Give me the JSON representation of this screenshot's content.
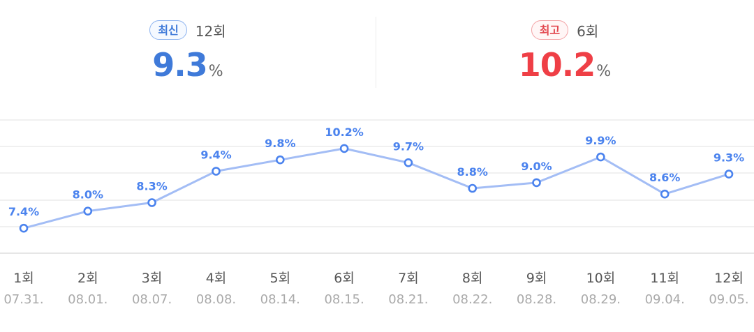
{
  "summary": {
    "latest": {
      "badge": "최신",
      "episode": "12회",
      "value": "9.3",
      "unit": "%"
    },
    "best": {
      "badge": "최고",
      "episode": "6회",
      "value": "10.2",
      "unit": "%"
    }
  },
  "colors": {
    "latest_accent": "#3f7ad9",
    "best_accent": "#ef3f46",
    "line": "#a3bdf5",
    "point": "#4b83ee"
  },
  "chart_data": {
    "type": "line",
    "categories": [
      "1회",
      "2회",
      "3회",
      "4회",
      "5회",
      "6회",
      "7회",
      "8회",
      "9회",
      "10회",
      "11회",
      "12회"
    ],
    "dates": [
      "07.31.",
      "08.01.",
      "08.07.",
      "08.08.",
      "08.14.",
      "08.15.",
      "08.21.",
      "08.22.",
      "08.28.",
      "08.29.",
      "09.04.",
      "09.05."
    ],
    "values": [
      7.4,
      8.0,
      8.3,
      9.4,
      9.8,
      10.2,
      9.7,
      8.8,
      9.0,
      9.9,
      8.6,
      9.3
    ],
    "labels": [
      "7.4%",
      "8.0%",
      "8.3%",
      "9.4%",
      "9.8%",
      "10.2%",
      "9.7%",
      "8.8%",
      "9.0%",
      "9.9%",
      "8.6%",
      "9.3%"
    ],
    "ylim": [
      6.5,
      11.2
    ],
    "grid": true,
    "title": "",
    "xlabel": "",
    "ylabel": ""
  }
}
